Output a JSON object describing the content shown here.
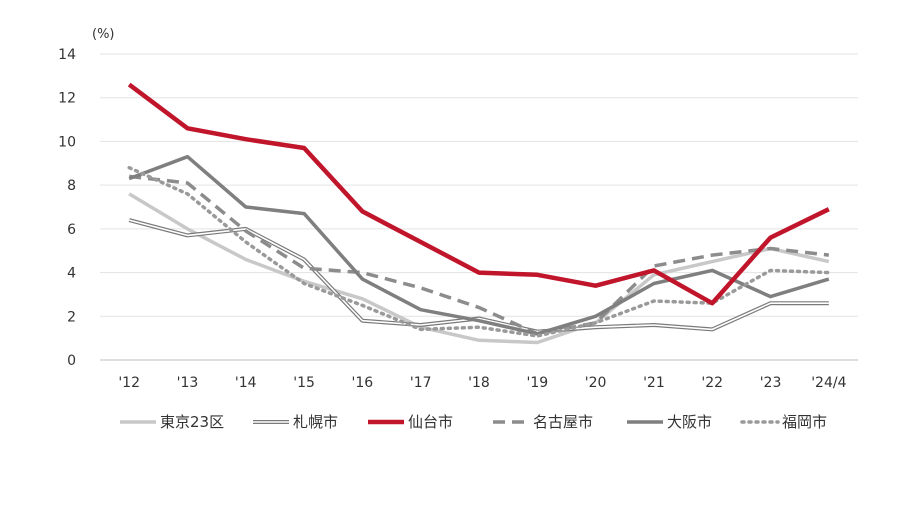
{
  "chart_data": {
    "type": "line",
    "unit_label": "(%)",
    "title": "",
    "xlabel": "",
    "ylabel": "",
    "ylim": [
      0,
      14
    ],
    "yticks": [
      0,
      2,
      4,
      6,
      8,
      10,
      12,
      14
    ],
    "grid": true,
    "legend_position": "bottom",
    "categories": [
      "'12",
      "'13",
      "'14",
      "'15",
      "'16",
      "'17",
      "'18",
      "'19",
      "'20",
      "'21",
      "'22",
      "'23",
      "'24/4"
    ],
    "series": [
      {
        "name": "東京23区",
        "style": "solid-light",
        "color": "#c8c8c8",
        "values": [
          7.6,
          6.0,
          4.6,
          3.6,
          2.8,
          1.5,
          0.9,
          0.8,
          1.7,
          3.9,
          4.5,
          5.1,
          4.5
        ]
      },
      {
        "name": "札幌市",
        "style": "double",
        "color": "#7a7a7a",
        "values": [
          6.4,
          5.7,
          6.0,
          4.6,
          1.8,
          1.6,
          1.9,
          1.3,
          1.5,
          1.6,
          1.4,
          2.6,
          2.6
        ]
      },
      {
        "name": "仙台市",
        "style": "solid-thick",
        "color": "#c0152a",
        "values": [
          12.6,
          10.6,
          10.1,
          9.7,
          6.8,
          5.4,
          4.0,
          3.9,
          3.4,
          4.1,
          2.6,
          5.6,
          6.9
        ]
      },
      {
        "name": "名古屋市",
        "style": "dashed",
        "color": "#8c8c8c",
        "values": [
          8.4,
          8.1,
          5.9,
          4.2,
          4.0,
          3.3,
          2.4,
          1.2,
          1.7,
          4.3,
          4.8,
          5.1,
          4.8
        ]
      },
      {
        "name": "大阪市",
        "style": "solid-medium",
        "color": "#7f7f7f",
        "values": [
          8.3,
          9.3,
          7.0,
          6.7,
          3.7,
          2.3,
          1.8,
          1.2,
          2.0,
          3.5,
          4.1,
          2.9,
          3.7
        ]
      },
      {
        "name": "福岡市",
        "style": "dotted",
        "color": "#9a9a9a",
        "values": [
          8.8,
          7.6,
          5.4,
          3.5,
          2.5,
          1.4,
          1.5,
          1.1,
          1.7,
          2.7,
          2.6,
          4.1,
          4.0
        ]
      }
    ]
  }
}
